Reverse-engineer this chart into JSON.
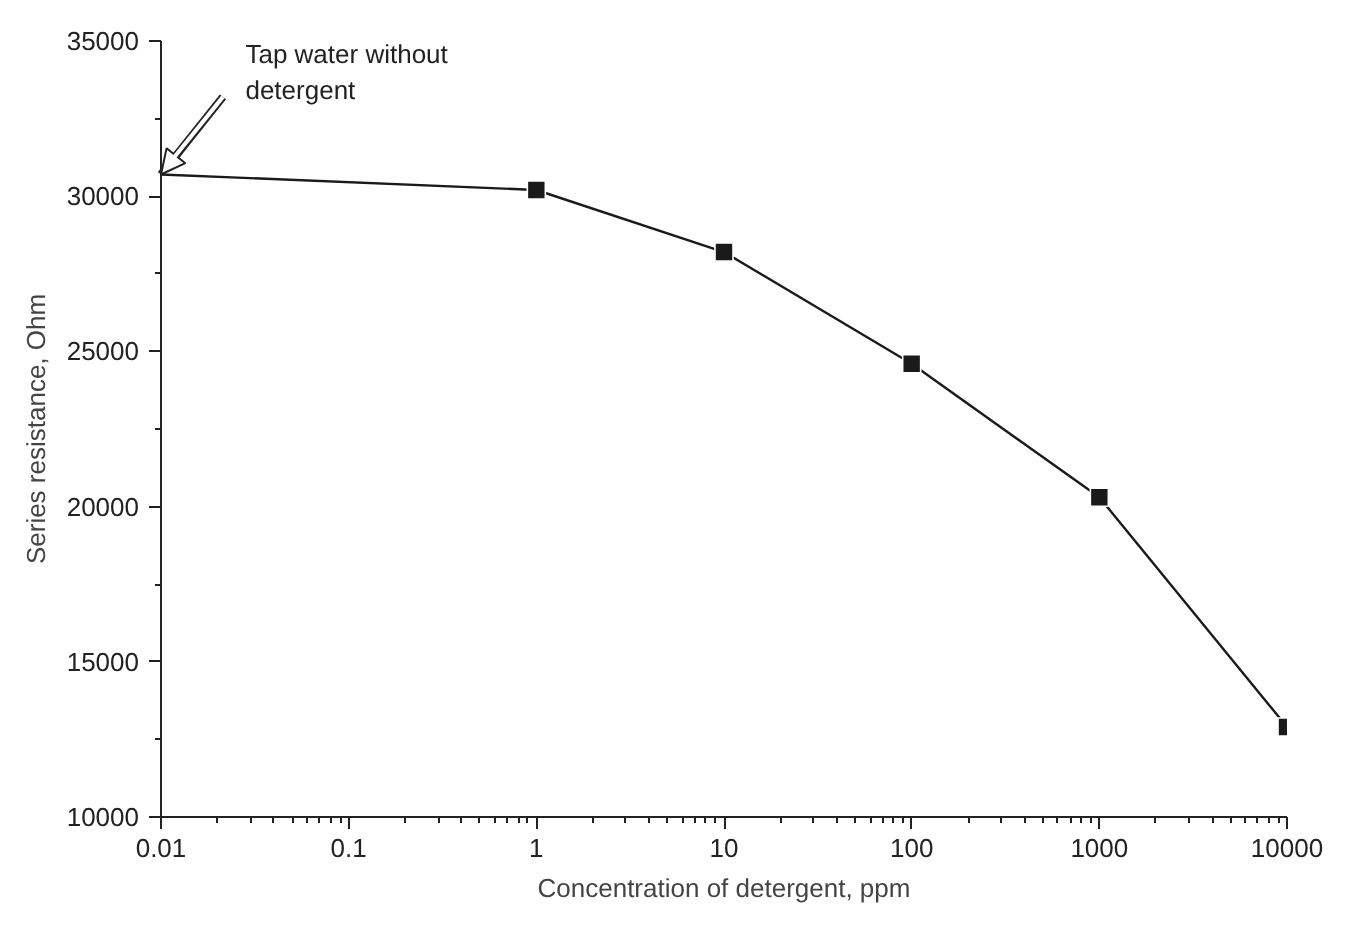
{
  "chart_data": {
    "type": "line",
    "xlabel": "Concentration of detergent, ppm",
    "ylabel": "Series resistance, Ohm",
    "log": "x",
    "xlim": [
      0.01,
      10000
    ],
    "xticks": [
      0.01,
      0.1,
      1,
      10,
      100,
      1000,
      10000
    ],
    "ylim": [
      10000,
      35000
    ],
    "yticks": [
      10000,
      15000,
      20000,
      25000,
      30000,
      35000
    ],
    "grid": false,
    "series": [
      {
        "color": "#1a1a1a",
        "x": [
          0.01,
          1
        ],
        "values": [
          30700,
          30200
        ]
      },
      {
        "color": "#1a1a1a",
        "x": [
          1,
          10,
          100,
          1000,
          10000
        ],
        "values": [
          30200,
          28200,
          24600,
          20300,
          12900
        ],
        "marker": "square"
      }
    ],
    "annotations": [
      {
        "text": "Tap water without\ndetergent",
        "x": 0.01,
        "y": 30700
      }
    ]
  }
}
